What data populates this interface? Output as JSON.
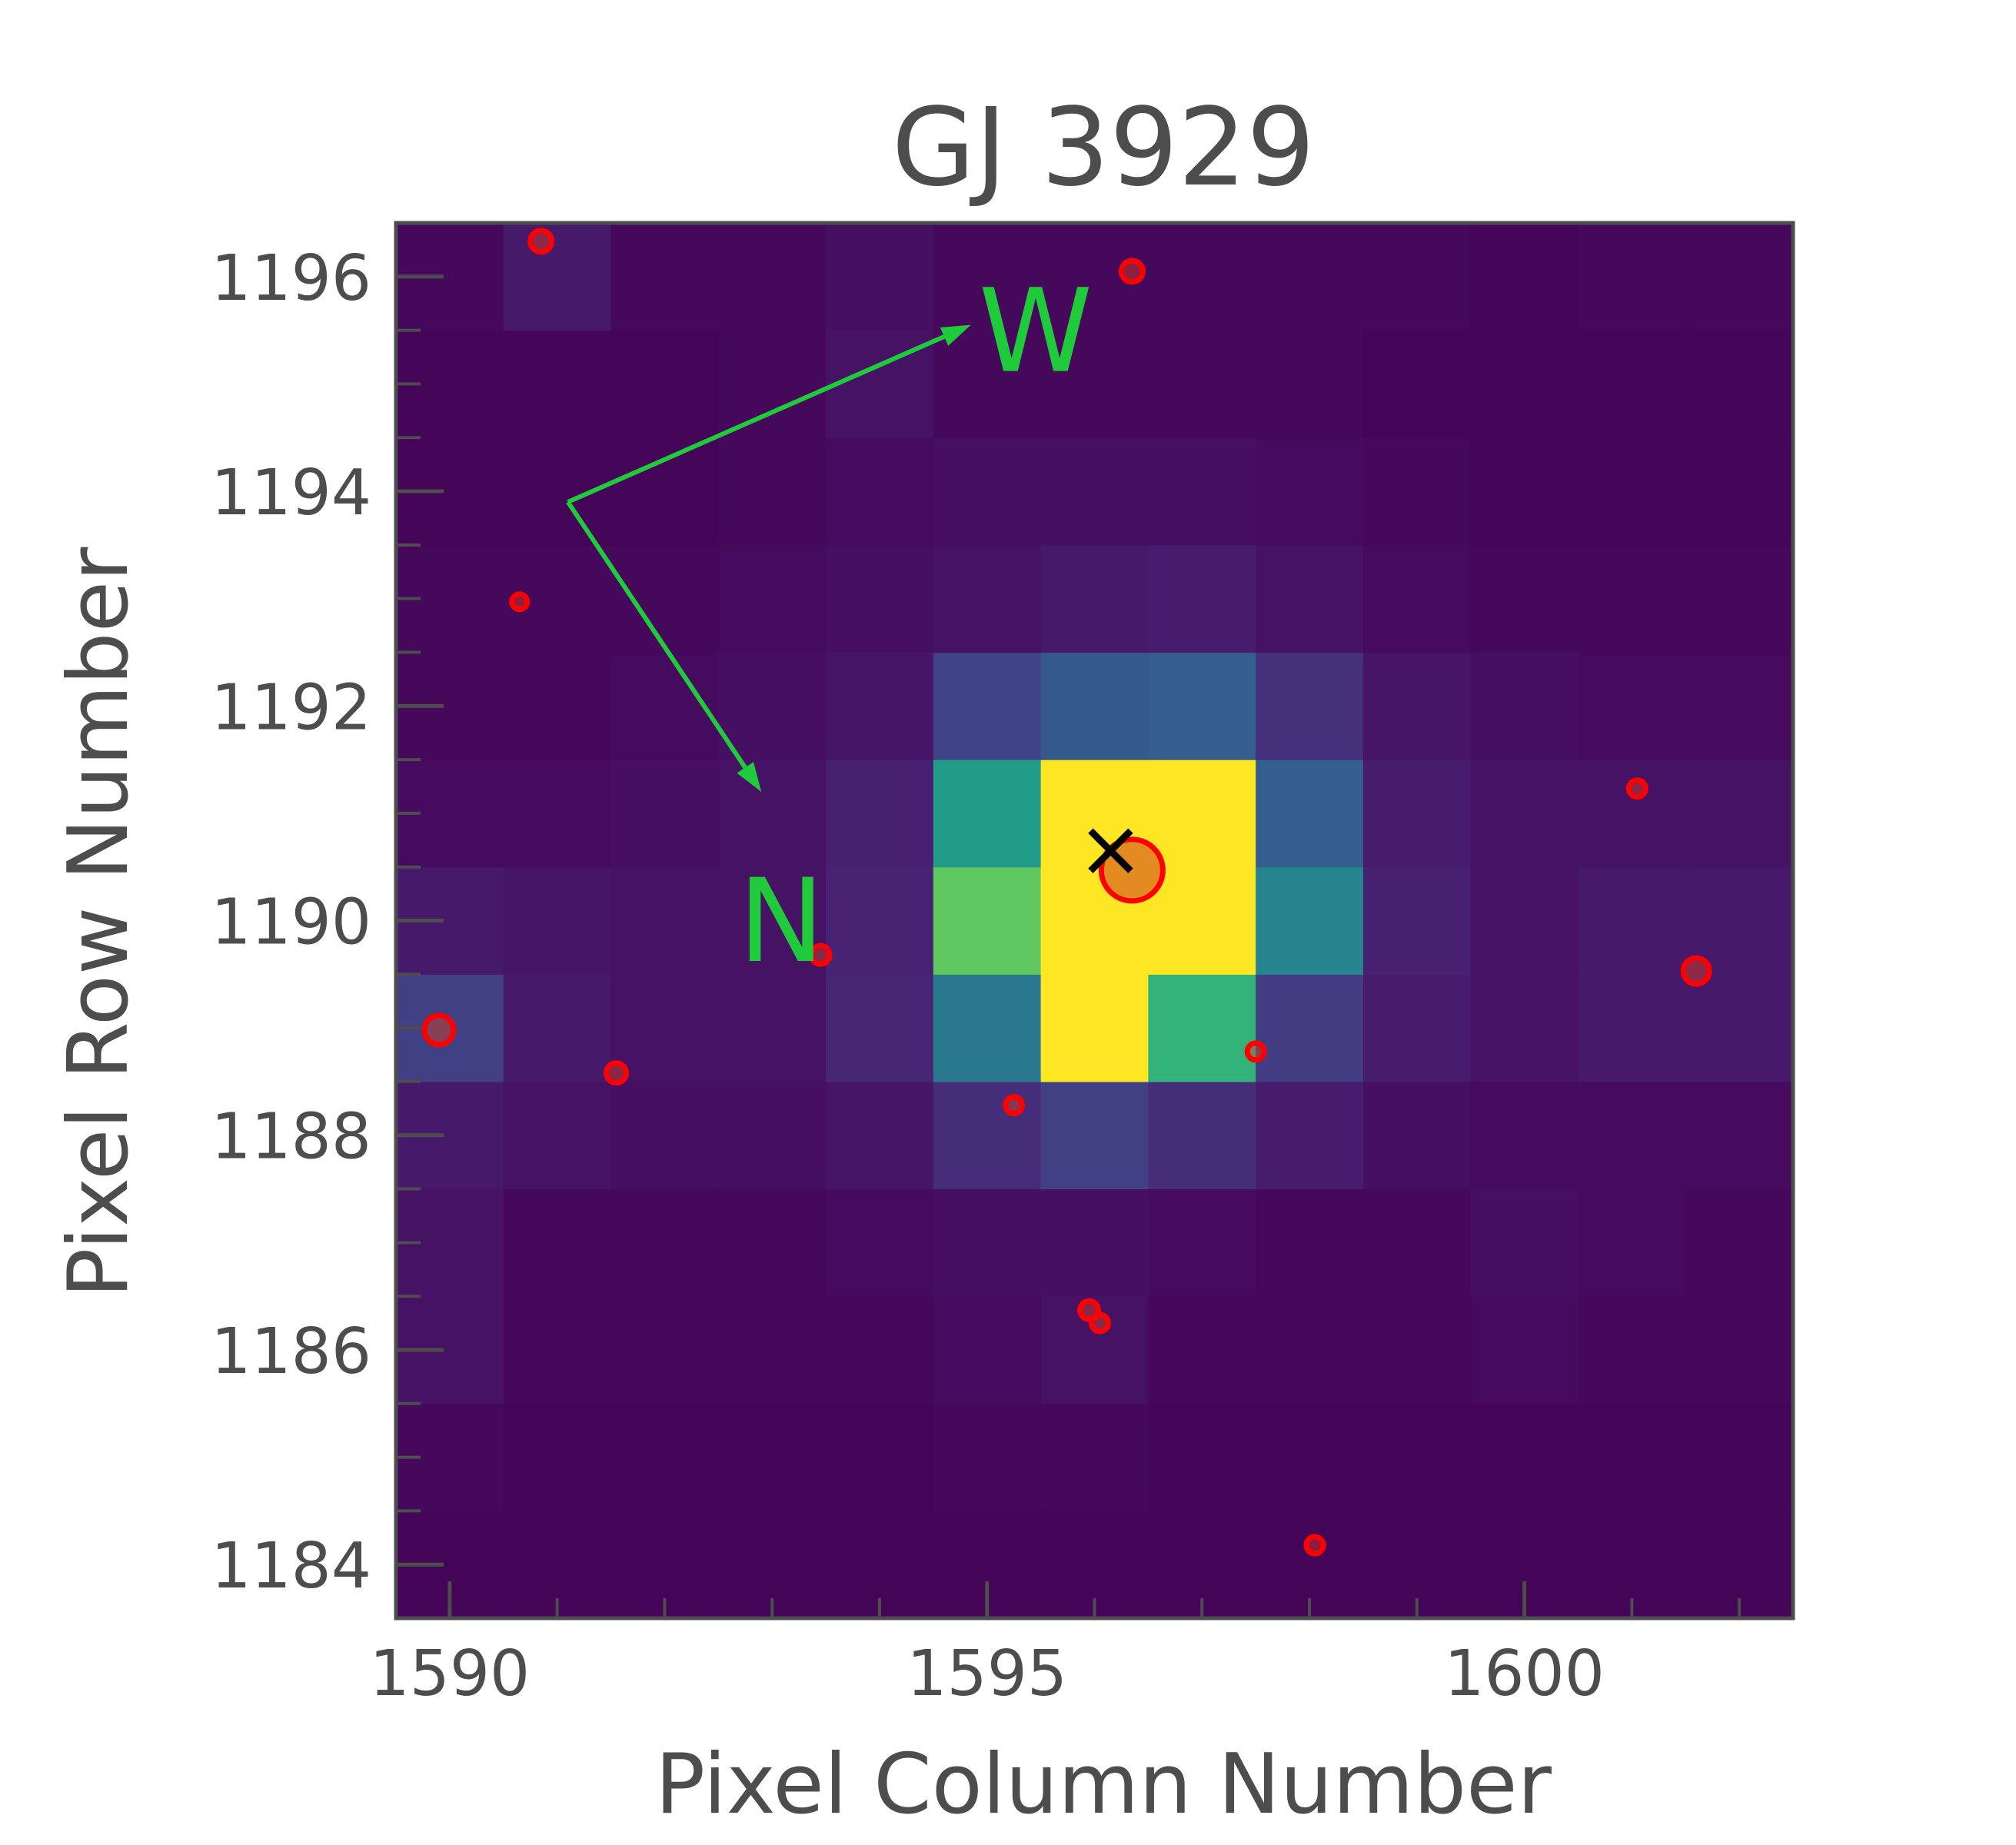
{
  "chart_data": {
    "type": "heatmap",
    "title": "GJ 3929",
    "xlabel": "Pixel Column Number",
    "ylabel": "Pixel Row Number",
    "x_ticks": [
      1590,
      1595,
      1600
    ],
    "y_ticks": [
      1184,
      1186,
      1188,
      1190,
      1192,
      1194,
      1196
    ],
    "xlim": [
      1589.5,
      1602.5
    ],
    "ylim": [
      1183.5,
      1196.5
    ],
    "colormap": "viridis",
    "columns": [
      1590,
      1591,
      1592,
      1593,
      1594,
      1595,
      1596,
      1597,
      1598,
      1599,
      1600,
      1601,
      1602
    ],
    "rows": [
      1184,
      1185,
      1186,
      1187,
      1188,
      1189,
      1190,
      1191,
      1192,
      1193,
      1194,
      1195,
      1196
    ],
    "pixel_values": [
      [
        0.01,
        0.01,
        0.01,
        0.01,
        0.01,
        0.01,
        0.01,
        0.01,
        0.01,
        0.01,
        0.01,
        0.01,
        0.01
      ],
      [
        0.02,
        0.01,
        0.01,
        0.01,
        0.01,
        0.02,
        0.02,
        0.01,
        0.01,
        0.01,
        0.01,
        0.01,
        0.01
      ],
      [
        0.05,
        0.02,
        0.02,
        0.02,
        0.02,
        0.03,
        0.05,
        0.02,
        0.02,
        0.02,
        0.03,
        0.02,
        0.02
      ],
      [
        0.05,
        0.02,
        0.02,
        0.02,
        0.03,
        0.04,
        0.04,
        0.03,
        0.02,
        0.02,
        0.04,
        0.03,
        0.02
      ],
      [
        0.07,
        0.05,
        0.04,
        0.04,
        0.06,
        0.13,
        0.19,
        0.13,
        0.08,
        0.04,
        0.03,
        0.03,
        0.03
      ],
      [
        0.19,
        0.07,
        0.05,
        0.05,
        0.11,
        0.4,
        1.0,
        0.65,
        0.18,
        0.08,
        0.05,
        0.07,
        0.07
      ],
      [
        0.07,
        0.06,
        0.05,
        0.05,
        0.1,
        0.75,
        1.0,
        1.0,
        0.45,
        0.09,
        0.05,
        0.07,
        0.07
      ],
      [
        0.03,
        0.03,
        0.04,
        0.05,
        0.09,
        0.55,
        1.0,
        1.0,
        0.3,
        0.08,
        0.05,
        0.05,
        0.05
      ],
      [
        0.02,
        0.02,
        0.03,
        0.04,
        0.06,
        0.2,
        0.28,
        0.3,
        0.14,
        0.06,
        0.04,
        0.03,
        0.03
      ],
      [
        0.02,
        0.02,
        0.02,
        0.03,
        0.04,
        0.05,
        0.07,
        0.08,
        0.05,
        0.03,
        0.02,
        0.02,
        0.02
      ],
      [
        0.01,
        0.01,
        0.01,
        0.02,
        0.03,
        0.04,
        0.04,
        0.04,
        0.03,
        0.02,
        0.01,
        0.01,
        0.01
      ],
      [
        0.01,
        0.01,
        0.01,
        0.02,
        0.05,
        0.02,
        0.02,
        0.02,
        0.02,
        0.01,
        0.01,
        0.01,
        0.01
      ],
      [
        0.02,
        0.07,
        0.02,
        0.02,
        0.04,
        0.02,
        0.02,
        0.02,
        0.02,
        0.02,
        0.01,
        0.02,
        0.02
      ]
    ],
    "sources": [
      {
        "x": 1596.35,
        "y": 1190.47,
        "r": 40,
        "target": true
      },
      {
        "x": 1590.85,
        "y": 1196.33,
        "r": 14
      },
      {
        "x": 1596.35,
        "y": 1196.05,
        "r": 14
      },
      {
        "x": 1590.65,
        "y": 1192.97,
        "r": 10
      },
      {
        "x": 1593.45,
        "y": 1189.68,
        "r": 12
      },
      {
        "x": 1589.9,
        "y": 1188.98,
        "r": 19
      },
      {
        "x": 1591.55,
        "y": 1188.58,
        "r": 13
      },
      {
        "x": 1595.25,
        "y": 1188.28,
        "r": 11
      },
      {
        "x": 1597.5,
        "y": 1188.78,
        "r": 11
      },
      {
        "x": 1601.05,
        "y": 1191.23,
        "r": 11
      },
      {
        "x": 1601.6,
        "y": 1189.53,
        "r": 17
      },
      {
        "x": 1595.95,
        "y": 1186.37,
        "r": 12
      },
      {
        "x": 1596.05,
        "y": 1186.25,
        "r": 11
      },
      {
        "x": 1598.05,
        "y": 1184.18,
        "r": 11
      }
    ],
    "marker_x": {
      "x": 1596.15,
      "y": 1190.65
    },
    "compass": {
      "color": "#1fca3b",
      "origin": {
        "x": 1591.1,
        "y": 1193.9
      },
      "west_tip": {
        "x": 1594.85,
        "y": 1195.55
      },
      "north_tip": {
        "x": 1592.9,
        "y": 1191.2
      },
      "west_label": "W",
      "north_label": "N"
    },
    "colors": {
      "source_edge": "#ff0000",
      "source_fill": "#e04020",
      "target_fill": "#e08020",
      "marker": "#000000"
    }
  }
}
